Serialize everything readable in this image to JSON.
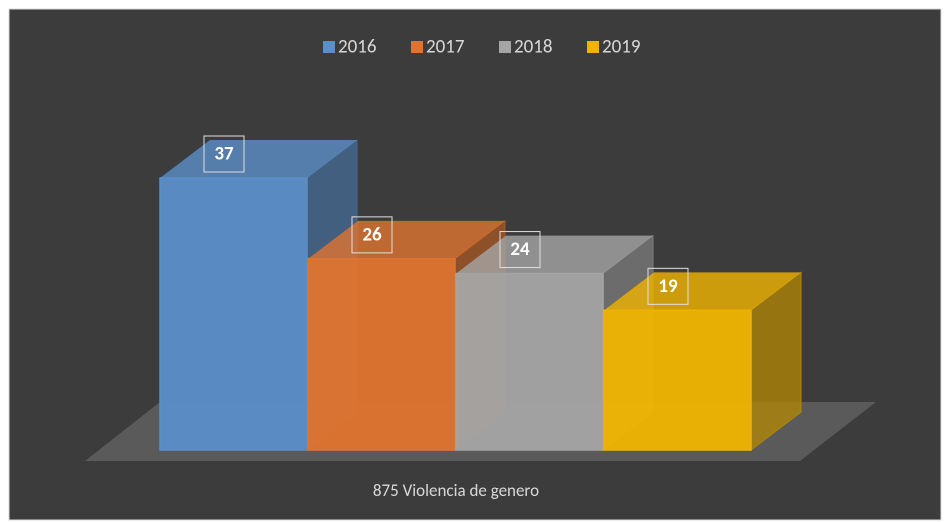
{
  "chart_data": {
    "type": "bar3d",
    "categories": [
      "875 Violencia de genero"
    ],
    "series": [
      {
        "name": "2016",
        "color": "#5b8fc9",
        "values": [
          37
        ]
      },
      {
        "name": "2017",
        "color": "#e0742f",
        "values": [
          26
        ]
      },
      {
        "name": "2018",
        "color": "#a5a5a5",
        "values": [
          24
        ]
      },
      {
        "name": "2019",
        "color": "#f0b400",
        "values": [
          19
        ]
      }
    ],
    "legend": "top",
    "data_labels": true
  }
}
